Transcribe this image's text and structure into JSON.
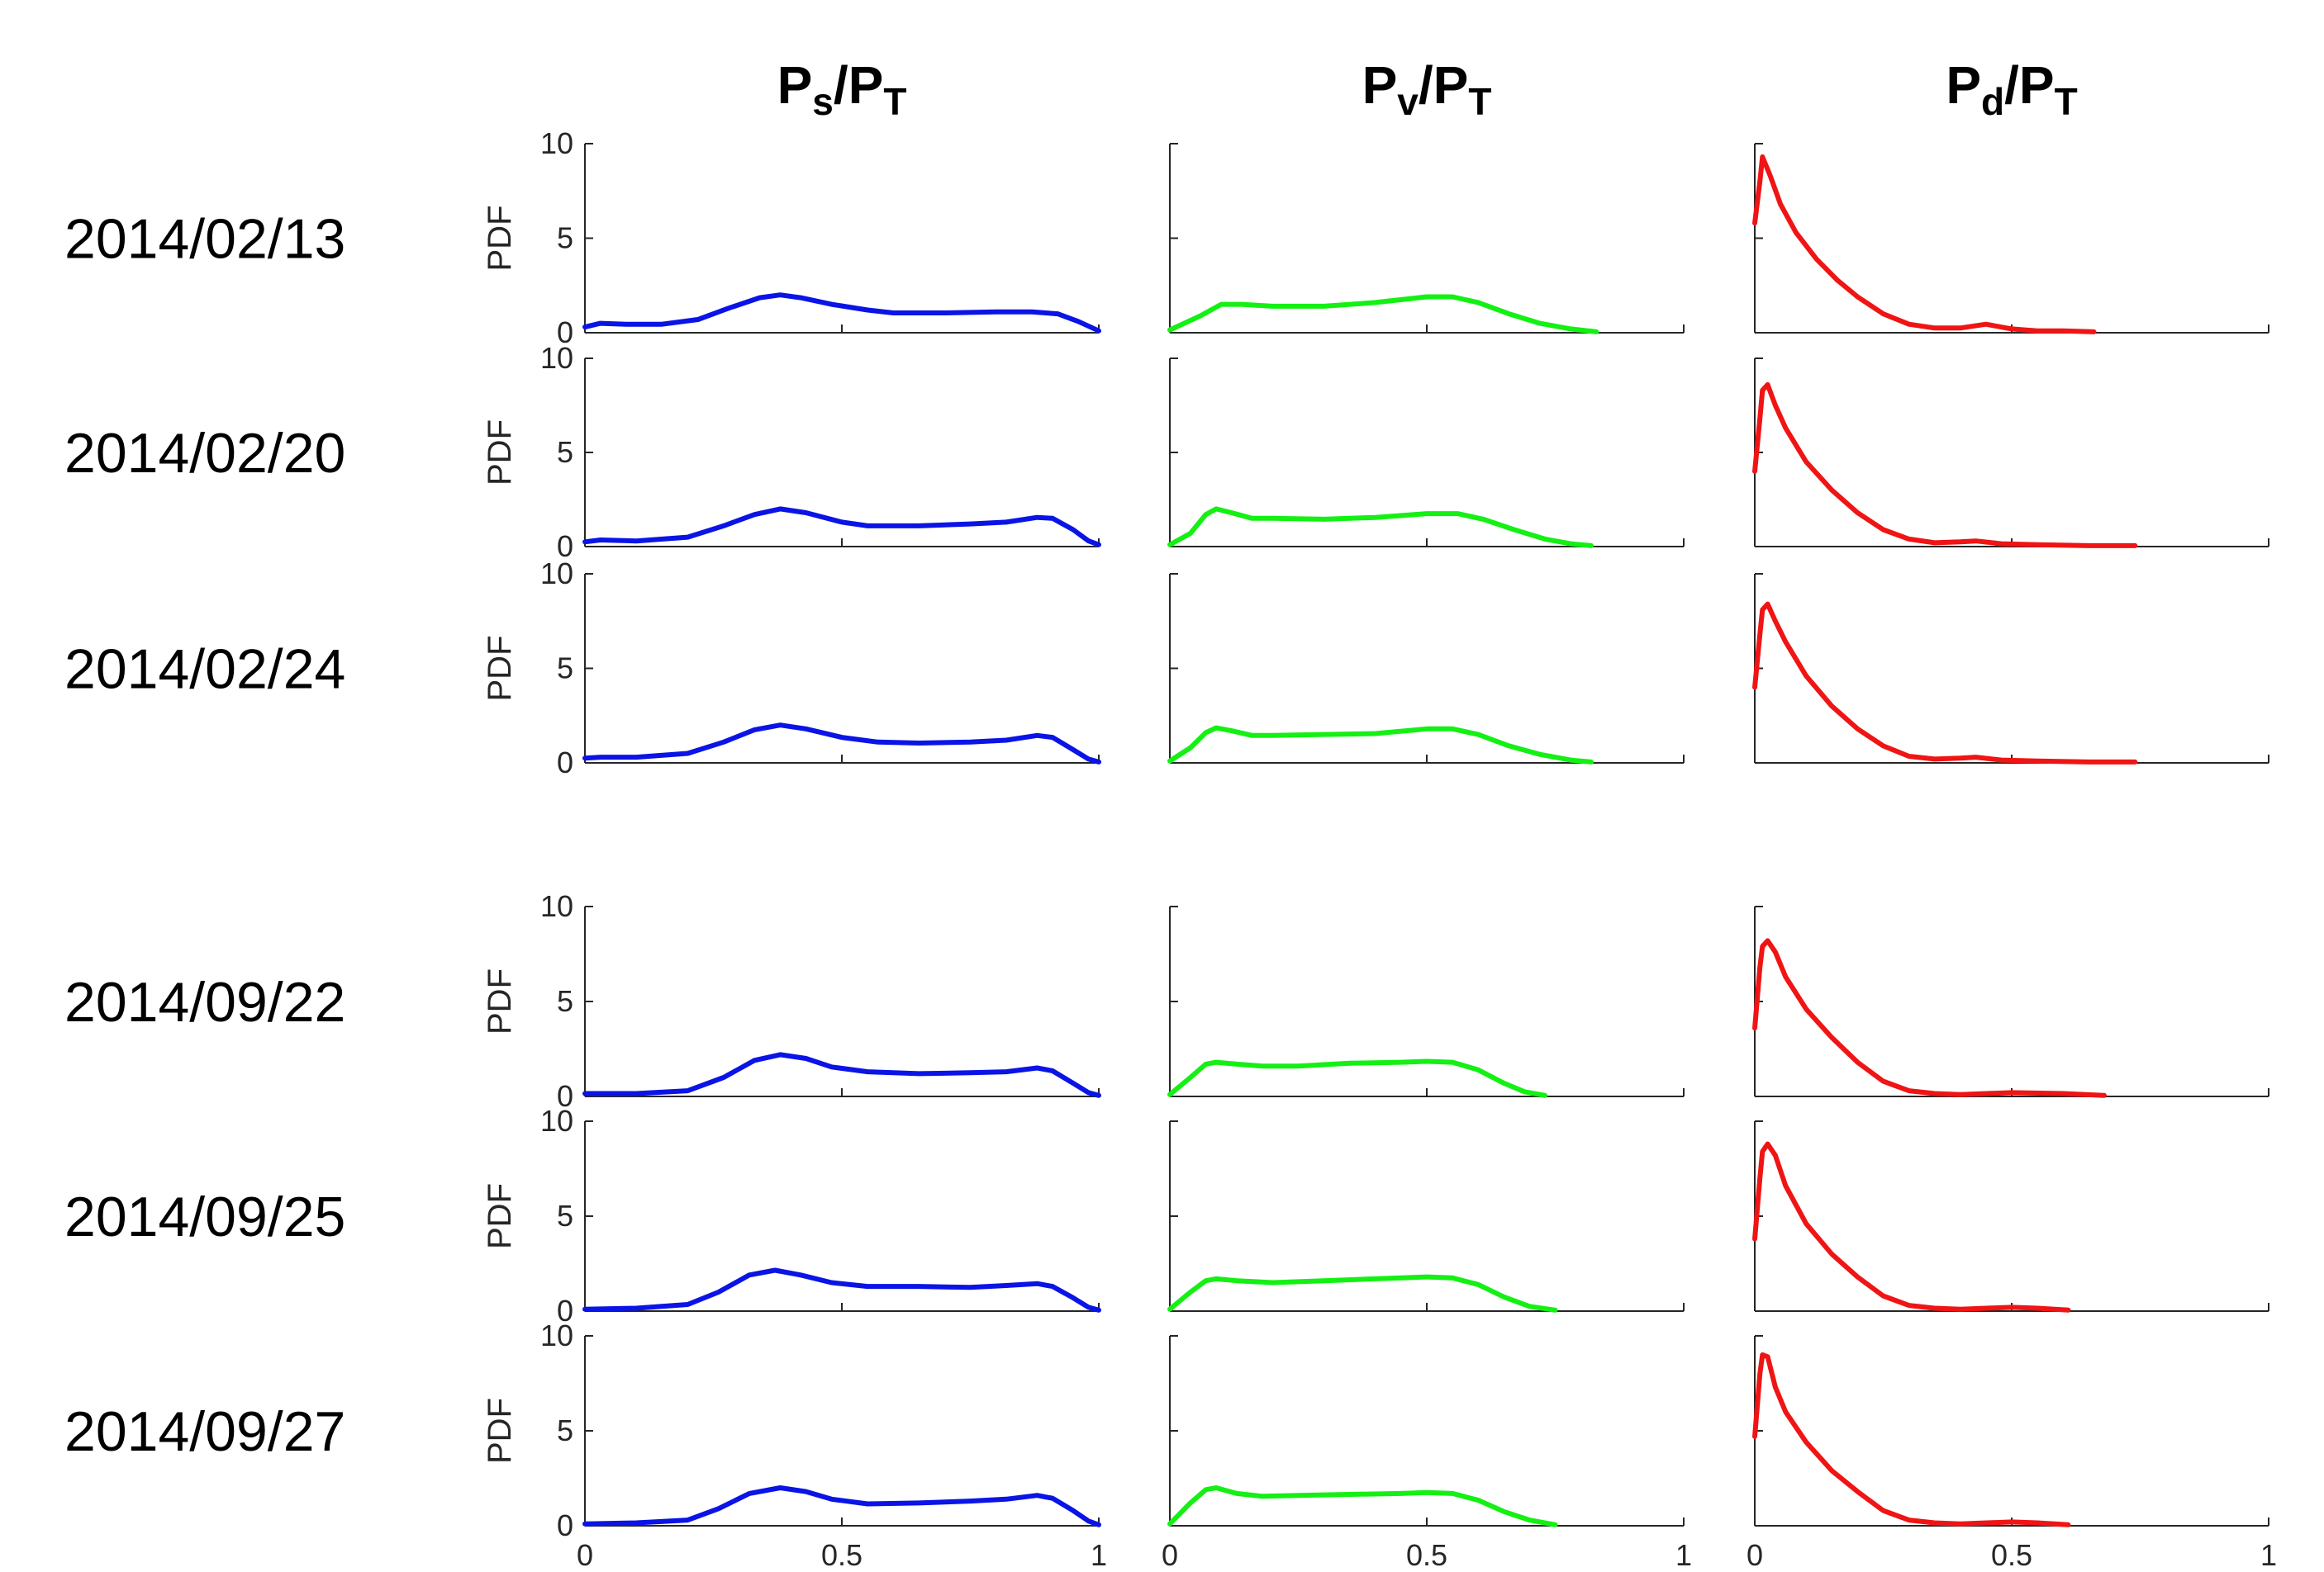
{
  "chart_data": {
    "type": "line",
    "columns": [
      {
        "title_main1": "P",
        "title_sub1": "s",
        "title_main2": "/P",
        "title_sub2": "T",
        "color": "#0a14e6"
      },
      {
        "title_main1": "P",
        "title_sub1": "v",
        "title_main2": "/P",
        "title_sub2": "T",
        "color": "#14f014"
      },
      {
        "title_main1": "P",
        "title_sub1": "d",
        "title_main2": "/P",
        "title_sub2": "T",
        "color": "#f01414"
      }
    ],
    "rows": [
      {
        "date": "2014/02/13"
      },
      {
        "date": "2014/02/20"
      },
      {
        "date": "2014/02/24"
      },
      {
        "date": "2014/09/22"
      },
      {
        "date": "2014/09/25"
      },
      {
        "date": "2014/09/27"
      }
    ],
    "ylabel": "PDF",
    "xlim": [
      0,
      1
    ],
    "ylim": [
      0,
      10
    ],
    "xticks": [
      0,
      0.5,
      1
    ],
    "xtick_labels": [
      "0",
      "0.5",
      "1"
    ],
    "yticks": [
      0,
      5,
      10
    ],
    "ytick_labels": [
      "0",
      "5",
      "10"
    ],
    "series": [
      [
        [
          [
            0,
            0.3
          ],
          [
            0.03,
            0.5
          ],
          [
            0.08,
            0.45
          ],
          [
            0.15,
            0.45
          ],
          [
            0.22,
            0.7
          ],
          [
            0.28,
            1.3
          ],
          [
            0.34,
            1.85
          ],
          [
            0.38,
            2.0
          ],
          [
            0.42,
            1.85
          ],
          [
            0.48,
            1.5
          ],
          [
            0.55,
            1.2
          ],
          [
            0.6,
            1.05
          ],
          [
            0.7,
            1.05
          ],
          [
            0.8,
            1.1
          ],
          [
            0.87,
            1.1
          ],
          [
            0.92,
            1.0
          ],
          [
            0.96,
            0.6
          ],
          [
            1.0,
            0.1
          ]
        ],
        [
          [
            0,
            0.15
          ],
          [
            0.06,
            0.9
          ],
          [
            0.1,
            1.5
          ],
          [
            0.14,
            1.5
          ],
          [
            0.2,
            1.4
          ],
          [
            0.3,
            1.4
          ],
          [
            0.4,
            1.6
          ],
          [
            0.5,
            1.9
          ],
          [
            0.55,
            1.9
          ],
          [
            0.6,
            1.6
          ],
          [
            0.66,
            1.0
          ],
          [
            0.72,
            0.5
          ],
          [
            0.78,
            0.2
          ],
          [
            0.83,
            0.05
          ]
        ],
        [
          [
            0,
            5.8
          ],
          [
            0.01,
            8.0
          ],
          [
            0.015,
            9.3
          ],
          [
            0.03,
            8.3
          ],
          [
            0.05,
            6.8
          ],
          [
            0.08,
            5.3
          ],
          [
            0.12,
            3.9
          ],
          [
            0.16,
            2.8
          ],
          [
            0.2,
            1.9
          ],
          [
            0.25,
            1.0
          ],
          [
            0.3,
            0.45
          ],
          [
            0.35,
            0.25
          ],
          [
            0.4,
            0.25
          ],
          [
            0.45,
            0.45
          ],
          [
            0.5,
            0.2
          ],
          [
            0.55,
            0.1
          ],
          [
            0.6,
            0.1
          ],
          [
            0.66,
            0.05
          ]
        ]
      ],
      [
        [
          [
            0,
            0.25
          ],
          [
            0.03,
            0.35
          ],
          [
            0.1,
            0.3
          ],
          [
            0.2,
            0.5
          ],
          [
            0.27,
            1.1
          ],
          [
            0.33,
            1.7
          ],
          [
            0.38,
            2.0
          ],
          [
            0.43,
            1.8
          ],
          [
            0.5,
            1.3
          ],
          [
            0.55,
            1.1
          ],
          [
            0.65,
            1.1
          ],
          [
            0.75,
            1.2
          ],
          [
            0.82,
            1.3
          ],
          [
            0.88,
            1.55
          ],
          [
            0.91,
            1.5
          ],
          [
            0.95,
            0.9
          ],
          [
            0.98,
            0.3
          ],
          [
            1.0,
            0.1
          ]
        ],
        [
          [
            0,
            0.1
          ],
          [
            0.04,
            0.7
          ],
          [
            0.07,
            1.7
          ],
          [
            0.09,
            2.0
          ],
          [
            0.12,
            1.8
          ],
          [
            0.16,
            1.5
          ],
          [
            0.2,
            1.5
          ],
          [
            0.3,
            1.45
          ],
          [
            0.4,
            1.55
          ],
          [
            0.5,
            1.75
          ],
          [
            0.56,
            1.75
          ],
          [
            0.61,
            1.45
          ],
          [
            0.67,
            0.9
          ],
          [
            0.73,
            0.4
          ],
          [
            0.78,
            0.15
          ],
          [
            0.82,
            0.05
          ]
        ],
        [
          [
            0,
            4.0
          ],
          [
            0.01,
            6.8
          ],
          [
            0.015,
            8.3
          ],
          [
            0.025,
            8.6
          ],
          [
            0.04,
            7.5
          ],
          [
            0.06,
            6.3
          ],
          [
            0.1,
            4.5
          ],
          [
            0.15,
            3.0
          ],
          [
            0.2,
            1.8
          ],
          [
            0.25,
            0.9
          ],
          [
            0.3,
            0.4
          ],
          [
            0.35,
            0.2
          ],
          [
            0.4,
            0.25
          ],
          [
            0.43,
            0.3
          ],
          [
            0.48,
            0.15
          ],
          [
            0.55,
            0.1
          ],
          [
            0.65,
            0.05
          ],
          [
            0.74,
            0.05
          ]
        ]
      ],
      [
        [
          [
            0,
            0.25
          ],
          [
            0.03,
            0.3
          ],
          [
            0.1,
            0.3
          ],
          [
            0.2,
            0.5
          ],
          [
            0.27,
            1.1
          ],
          [
            0.33,
            1.75
          ],
          [
            0.38,
            2.0
          ],
          [
            0.43,
            1.8
          ],
          [
            0.5,
            1.35
          ],
          [
            0.57,
            1.1
          ],
          [
            0.65,
            1.05
          ],
          [
            0.75,
            1.1
          ],
          [
            0.82,
            1.2
          ],
          [
            0.88,
            1.45
          ],
          [
            0.91,
            1.35
          ],
          [
            0.95,
            0.7
          ],
          [
            0.98,
            0.2
          ],
          [
            1.0,
            0.05
          ]
        ],
        [
          [
            0,
            0.1
          ],
          [
            0.04,
            0.8
          ],
          [
            0.07,
            1.6
          ],
          [
            0.09,
            1.85
          ],
          [
            0.12,
            1.7
          ],
          [
            0.16,
            1.45
          ],
          [
            0.2,
            1.45
          ],
          [
            0.3,
            1.5
          ],
          [
            0.4,
            1.55
          ],
          [
            0.5,
            1.8
          ],
          [
            0.55,
            1.8
          ],
          [
            0.6,
            1.5
          ],
          [
            0.66,
            0.9
          ],
          [
            0.72,
            0.45
          ],
          [
            0.78,
            0.15
          ],
          [
            0.82,
            0.05
          ]
        ],
        [
          [
            0,
            4.0
          ],
          [
            0.01,
            6.8
          ],
          [
            0.015,
            8.1
          ],
          [
            0.025,
            8.4
          ],
          [
            0.04,
            7.5
          ],
          [
            0.06,
            6.4
          ],
          [
            0.1,
            4.6
          ],
          [
            0.15,
            3.0
          ],
          [
            0.2,
            1.8
          ],
          [
            0.25,
            0.9
          ],
          [
            0.3,
            0.35
          ],
          [
            0.35,
            0.2
          ],
          [
            0.4,
            0.25
          ],
          [
            0.43,
            0.3
          ],
          [
            0.48,
            0.15
          ],
          [
            0.55,
            0.1
          ],
          [
            0.65,
            0.05
          ],
          [
            0.74,
            0.05
          ]
        ]
      ],
      [
        [
          [
            0,
            0.15
          ],
          [
            0.1,
            0.15
          ],
          [
            0.2,
            0.3
          ],
          [
            0.27,
            1.0
          ],
          [
            0.33,
            1.9
          ],
          [
            0.38,
            2.2
          ],
          [
            0.43,
            2.0
          ],
          [
            0.48,
            1.55
          ],
          [
            0.55,
            1.3
          ],
          [
            0.65,
            1.2
          ],
          [
            0.75,
            1.25
          ],
          [
            0.82,
            1.3
          ],
          [
            0.88,
            1.5
          ],
          [
            0.91,
            1.35
          ],
          [
            0.95,
            0.7
          ],
          [
            0.98,
            0.2
          ],
          [
            1.0,
            0.05
          ]
        ],
        [
          [
            0,
            0.1
          ],
          [
            0.04,
            1.0
          ],
          [
            0.07,
            1.7
          ],
          [
            0.09,
            1.8
          ],
          [
            0.13,
            1.7
          ],
          [
            0.18,
            1.6
          ],
          [
            0.25,
            1.6
          ],
          [
            0.35,
            1.75
          ],
          [
            0.45,
            1.8
          ],
          [
            0.5,
            1.85
          ],
          [
            0.55,
            1.8
          ],
          [
            0.6,
            1.4
          ],
          [
            0.65,
            0.7
          ],
          [
            0.69,
            0.25
          ],
          [
            0.73,
            0.05
          ]
        ],
        [
          [
            0,
            3.6
          ],
          [
            0.01,
            6.8
          ],
          [
            0.015,
            7.9
          ],
          [
            0.025,
            8.2
          ],
          [
            0.04,
            7.6
          ],
          [
            0.06,
            6.3
          ],
          [
            0.1,
            4.6
          ],
          [
            0.15,
            3.1
          ],
          [
            0.2,
            1.8
          ],
          [
            0.25,
            0.8
          ],
          [
            0.3,
            0.3
          ],
          [
            0.35,
            0.15
          ],
          [
            0.4,
            0.1
          ],
          [
            0.5,
            0.2
          ],
          [
            0.6,
            0.15
          ],
          [
            0.68,
            0.05
          ]
        ]
      ],
      [
        [
          [
            0,
            0.1
          ],
          [
            0.1,
            0.15
          ],
          [
            0.2,
            0.35
          ],
          [
            0.26,
            1.0
          ],
          [
            0.32,
            1.9
          ],
          [
            0.37,
            2.15
          ],
          [
            0.42,
            1.9
          ],
          [
            0.48,
            1.5
          ],
          [
            0.55,
            1.3
          ],
          [
            0.65,
            1.3
          ],
          [
            0.75,
            1.25
          ],
          [
            0.82,
            1.35
          ],
          [
            0.88,
            1.45
          ],
          [
            0.91,
            1.3
          ],
          [
            0.95,
            0.7
          ],
          [
            0.98,
            0.2
          ],
          [
            1.0,
            0.05
          ]
        ],
        [
          [
            0,
            0.1
          ],
          [
            0.04,
            1.0
          ],
          [
            0.07,
            1.6
          ],
          [
            0.09,
            1.7
          ],
          [
            0.13,
            1.6
          ],
          [
            0.2,
            1.5
          ],
          [
            0.3,
            1.6
          ],
          [
            0.4,
            1.7
          ],
          [
            0.5,
            1.8
          ],
          [
            0.55,
            1.75
          ],
          [
            0.6,
            1.4
          ],
          [
            0.65,
            0.75
          ],
          [
            0.7,
            0.25
          ],
          [
            0.75,
            0.05
          ]
        ],
        [
          [
            0,
            3.8
          ],
          [
            0.01,
            7.0
          ],
          [
            0.015,
            8.4
          ],
          [
            0.025,
            8.8
          ],
          [
            0.04,
            8.2
          ],
          [
            0.06,
            6.6
          ],
          [
            0.1,
            4.6
          ],
          [
            0.15,
            3.0
          ],
          [
            0.2,
            1.8
          ],
          [
            0.25,
            0.8
          ],
          [
            0.3,
            0.3
          ],
          [
            0.35,
            0.15
          ],
          [
            0.4,
            0.1
          ],
          [
            0.5,
            0.2
          ],
          [
            0.55,
            0.15
          ],
          [
            0.61,
            0.05
          ]
        ]
      ],
      [
        [
          [
            0,
            0.1
          ],
          [
            0.1,
            0.15
          ],
          [
            0.2,
            0.3
          ],
          [
            0.26,
            0.9
          ],
          [
            0.32,
            1.7
          ],
          [
            0.38,
            2.0
          ],
          [
            0.43,
            1.8
          ],
          [
            0.48,
            1.4
          ],
          [
            0.55,
            1.15
          ],
          [
            0.65,
            1.2
          ],
          [
            0.75,
            1.3
          ],
          [
            0.82,
            1.4
          ],
          [
            0.88,
            1.6
          ],
          [
            0.91,
            1.45
          ],
          [
            0.95,
            0.8
          ],
          [
            0.98,
            0.25
          ],
          [
            1.0,
            0.05
          ]
        ],
        [
          [
            0,
            0.1
          ],
          [
            0.04,
            1.2
          ],
          [
            0.07,
            1.9
          ],
          [
            0.09,
            2.0
          ],
          [
            0.13,
            1.7
          ],
          [
            0.18,
            1.55
          ],
          [
            0.25,
            1.6
          ],
          [
            0.35,
            1.65
          ],
          [
            0.45,
            1.7
          ],
          [
            0.5,
            1.75
          ],
          [
            0.55,
            1.7
          ],
          [
            0.6,
            1.35
          ],
          [
            0.65,
            0.75
          ],
          [
            0.7,
            0.3
          ],
          [
            0.75,
            0.05
          ]
        ],
        [
          [
            0,
            4.7
          ],
          [
            0.01,
            8.0
          ],
          [
            0.015,
            9.0
          ],
          [
            0.025,
            8.9
          ],
          [
            0.04,
            7.3
          ],
          [
            0.06,
            6.0
          ],
          [
            0.1,
            4.4
          ],
          [
            0.15,
            2.9
          ],
          [
            0.2,
            1.8
          ],
          [
            0.25,
            0.8
          ],
          [
            0.3,
            0.3
          ],
          [
            0.35,
            0.15
          ],
          [
            0.4,
            0.1
          ],
          [
            0.5,
            0.2
          ],
          [
            0.55,
            0.15
          ],
          [
            0.61,
            0.05
          ]
        ]
      ]
    ]
  }
}
